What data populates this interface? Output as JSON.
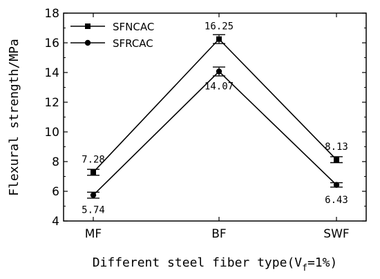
{
  "chart_data": {
    "type": "line",
    "categories": [
      "MF",
      "BF",
      "SWF"
    ],
    "series": [
      {
        "name": "SFNCAC",
        "marker": "square",
        "values": [
          7.28,
          16.25,
          8.13
        ],
        "errors": [
          0.2,
          0.3,
          0.2
        ],
        "labels": [
          "7.28",
          "16.25",
          "8.13"
        ]
      },
      {
        "name": "SFRCAC",
        "marker": "circle",
        "values": [
          5.74,
          14.07,
          6.43
        ],
        "errors": [
          0.2,
          0.3,
          0.15
        ],
        "labels": [
          "5.74",
          "14.07",
          "6.43"
        ]
      }
    ],
    "ylabel": "Flexural strength/MPa",
    "xlabel": {
      "prefix": "Different steel fiber type(V",
      "subscript": "f",
      "suffix": "=1%)"
    },
    "ylim": [
      4,
      18
    ],
    "yticks": [
      "4",
      "6",
      "8",
      "10",
      "12",
      "14",
      "16",
      "18"
    ],
    "legend_position": "top-left",
    "grid": false,
    "colors": {
      "line": "#000000",
      "background": "#ffffff"
    }
  }
}
